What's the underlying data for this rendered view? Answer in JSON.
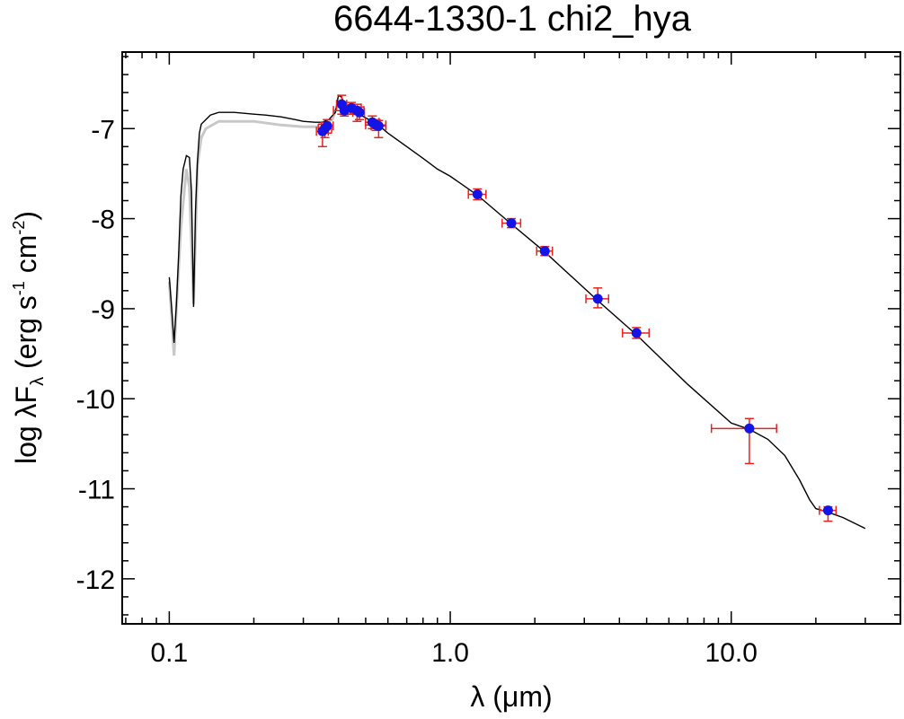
{
  "chart_data": {
    "type": "scatter",
    "title": "6644-1330-1   chi2_hya",
    "xlabel": "λ (μm)",
    "ylabel": {
      "prefix": "log λF",
      "subscript": "λ",
      "units_open": " (erg s",
      "exp1": "-1",
      "units_mid": " cm",
      "exp2": "-2",
      "units_close": ")"
    },
    "xscale": "log",
    "xlim": [
      0.068,
      40.0
    ],
    "ylim": [
      -12.5,
      -6.15
    ],
    "xticks": [
      {
        "value": 0.1,
        "label": "0.1"
      },
      {
        "value": 1.0,
        "label": "1.0"
      },
      {
        "value": 10.0,
        "label": "10.0"
      }
    ],
    "yticks": [
      {
        "value": -7,
        "label": "-7"
      },
      {
        "value": -8,
        "label": "-8"
      },
      {
        "value": -9,
        "label": "-9"
      },
      {
        "value": -10,
        "label": "-10"
      },
      {
        "value": -11,
        "label": "-11"
      },
      {
        "value": -12,
        "label": "-12"
      }
    ],
    "colors": {
      "model": "#000000",
      "model_gray": "#c8c8c8",
      "errorbar": "#e8221c",
      "point": "#1414e6"
    },
    "series": [
      {
        "name": "observed photometry",
        "points": [
          {
            "x": 0.351,
            "y": -7.03,
            "xlo": 0.334,
            "xhi": 0.368,
            "ylo": -7.2,
            "yhi": -6.95
          },
          {
            "x": 0.358,
            "y": -7.0,
            "xlo": 0.339,
            "xhi": 0.378,
            "ylo": -7.1,
            "yhi": -6.93
          },
          {
            "x": 0.365,
            "y": -6.97,
            "xlo": 0.348,
            "xhi": 0.383,
            "ylo": -7.05,
            "yhi": -6.9
          },
          {
            "x": 0.411,
            "y": -6.73,
            "xlo": 0.394,
            "xhi": 0.428,
            "ylo": -6.84,
            "yhi": -6.63
          },
          {
            "x": 0.42,
            "y": -6.8,
            "xlo": 0.384,
            "xhi": 0.456,
            "ylo": -6.86,
            "yhi": -6.74
          },
          {
            "x": 0.445,
            "y": -6.77,
            "xlo": 0.408,
            "xhi": 0.482,
            "ylo": -6.84,
            "yhi": -6.71
          },
          {
            "x": 0.466,
            "y": -6.8,
            "xlo": 0.44,
            "xhi": 0.493,
            "ylo": -6.92,
            "yhi": -6.73
          },
          {
            "x": 0.475,
            "y": -6.82,
            "xlo": 0.45,
            "xhi": 0.495,
            "ylo": -6.9,
            "yhi": -6.76
          },
          {
            "x": 0.528,
            "y": -6.93,
            "xlo": 0.499,
            "xhi": 0.558,
            "ylo": -7.0,
            "yhi": -6.86
          },
          {
            "x": 0.545,
            "y": -6.96,
            "xlo": 0.5,
            "xhi": 0.59,
            "ylo": -7.02,
            "yhi": -6.9
          },
          {
            "x": 0.556,
            "y": -6.97,
            "xlo": 0.523,
            "xhi": 0.59,
            "ylo": -7.1,
            "yhi": -6.91
          },
          {
            "x": 1.25,
            "y": -7.73,
            "xlo": 1.16,
            "xhi": 1.34,
            "ylo": -7.79,
            "yhi": -7.67
          },
          {
            "x": 1.65,
            "y": -8.05,
            "xlo": 1.53,
            "xhi": 1.78,
            "ylo": -8.1,
            "yhi": -8.0
          },
          {
            "x": 2.17,
            "y": -8.36,
            "xlo": 2.03,
            "xhi": 2.31,
            "ylo": -8.41,
            "yhi": -8.31
          },
          {
            "x": 3.35,
            "y": -8.89,
            "xlo": 3.04,
            "xhi": 3.66,
            "ylo": -8.99,
            "yhi": -8.77
          },
          {
            "x": 4.6,
            "y": -9.27,
            "xlo": 4.1,
            "xhi": 5.1,
            "ylo": -9.33,
            "yhi": -9.21
          },
          {
            "x": 11.6,
            "y": -10.33,
            "xlo": 8.5,
            "xhi": 14.5,
            "ylo": -10.72,
            "yhi": -10.22
          },
          {
            "x": 22.1,
            "y": -11.24,
            "xlo": 20.6,
            "xhi": 23.6,
            "ylo": -11.36,
            "yhi": -11.2
          }
        ]
      },
      {
        "name": "model SED (gray)",
        "x": [
          0.1,
          0.104,
          0.106,
          0.11,
          0.115,
          0.118,
          0.122,
          0.126,
          0.13,
          0.135,
          0.15,
          0.2,
          0.25,
          0.3,
          0.35,
          0.38,
          0.4
        ],
        "y": [
          -8.7,
          -9.52,
          -9.0,
          -8.1,
          -7.45,
          -7.65,
          -8.95,
          -7.4,
          -7.1,
          -7.0,
          -6.92,
          -6.92,
          -6.96,
          -6.98,
          -6.98,
          -6.9,
          -6.72
        ]
      },
      {
        "name": "model SED (black)",
        "x": [
          0.1,
          0.102,
          0.104,
          0.106,
          0.108,
          0.11,
          0.112,
          0.115,
          0.118,
          0.12,
          0.122,
          0.124,
          0.126,
          0.128,
          0.13,
          0.135,
          0.14,
          0.15,
          0.17,
          0.2,
          0.22,
          0.25,
          0.28,
          0.3,
          0.33,
          0.35,
          0.37,
          0.39,
          0.4,
          0.41,
          0.42,
          0.44,
          0.46,
          0.5,
          0.55,
          0.6,
          0.7,
          0.8,
          0.9,
          1.0,
          1.25,
          1.65,
          2.17,
          3.35,
          4.6,
          7.0,
          10.0,
          11.6,
          13.5,
          15.5,
          17.5,
          19.0,
          20.0,
          22.1,
          25.0,
          30.0
        ],
        "y": [
          -8.65,
          -9.0,
          -9.38,
          -8.95,
          -8.4,
          -7.75,
          -7.45,
          -7.3,
          -7.32,
          -7.7,
          -8.98,
          -7.9,
          -7.35,
          -7.05,
          -6.95,
          -6.9,
          -6.85,
          -6.82,
          -6.82,
          -6.84,
          -6.85,
          -6.87,
          -6.9,
          -6.92,
          -6.93,
          -6.93,
          -6.9,
          -6.82,
          -6.63,
          -6.65,
          -6.73,
          -6.78,
          -6.82,
          -6.88,
          -6.95,
          -7.05,
          -7.2,
          -7.33,
          -7.45,
          -7.53,
          -7.74,
          -8.06,
          -8.37,
          -8.91,
          -9.29,
          -9.84,
          -10.27,
          -10.34,
          -10.45,
          -10.63,
          -10.9,
          -11.12,
          -11.22,
          -11.26,
          -11.32,
          -11.44
        ]
      }
    ]
  }
}
